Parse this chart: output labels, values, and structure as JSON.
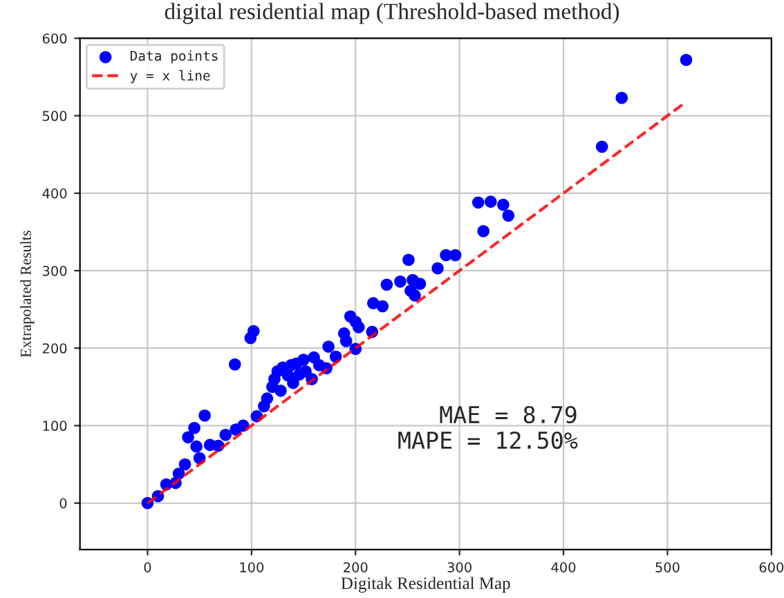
{
  "chart_data": {
    "type": "scatter",
    "title": "digital residential map (Threshold-based method)",
    "xlabel": "Digitak Residential Map",
    "ylabel": "Extrapolated Results",
    "xlim": [
      -65,
      600
    ],
    "ylim": [
      -60,
      600
    ],
    "xticks": [
      0,
      100,
      200,
      300,
      400,
      500,
      600
    ],
    "yticks": [
      0,
      100,
      200,
      300,
      400,
      500,
      600
    ],
    "grid": true,
    "legend": "top left",
    "series": [
      {
        "name": "Data points",
        "color": "#0000ff",
        "marker": "circle",
        "x": [
          0,
          10,
          18,
          27,
          30,
          36,
          39,
          45,
          47,
          55,
          50,
          60,
          68,
          75,
          84,
          85,
          92,
          99,
          102,
          105,
          112,
          115,
          120,
          122,
          125,
          128,
          130,
          135,
          138,
          140,
          143,
          146,
          150,
          152,
          158,
          160,
          165,
          172,
          174,
          181,
          189,
          191,
          195,
          200,
          200,
          203,
          216,
          217,
          226,
          230,
          243,
          251,
          253,
          255,
          257,
          262,
          279,
          287,
          296,
          318,
          323,
          330,
          342,
          347,
          437,
          456,
          518
        ],
        "values": [
          0,
          9,
          24,
          26,
          38,
          50,
          85,
          97,
          73,
          113,
          58,
          75,
          74,
          88,
          179,
          95,
          100,
          213,
          222,
          112,
          125,
          135,
          150,
          160,
          170,
          145,
          175,
          165,
          178,
          155,
          180,
          166,
          185,
          170,
          160,
          188,
          178,
          174,
          202,
          189,
          219,
          209,
          241,
          199,
          234,
          227,
          221,
          258,
          254,
          282,
          286,
          314,
          274,
          288,
          268,
          283,
          303,
          320,
          320,
          388,
          351,
          389,
          385,
          371,
          460,
          523,
          572
        ]
      },
      {
        "name": "y = x line",
        "type": "line",
        "color": "#ff0000",
        "line_style": "dashed",
        "x": [
          0,
          515
        ],
        "values": [
          0,
          515
        ]
      }
    ],
    "annotations": [
      "MAE = 8.79",
      "MAPE = 12.50%"
    ]
  }
}
